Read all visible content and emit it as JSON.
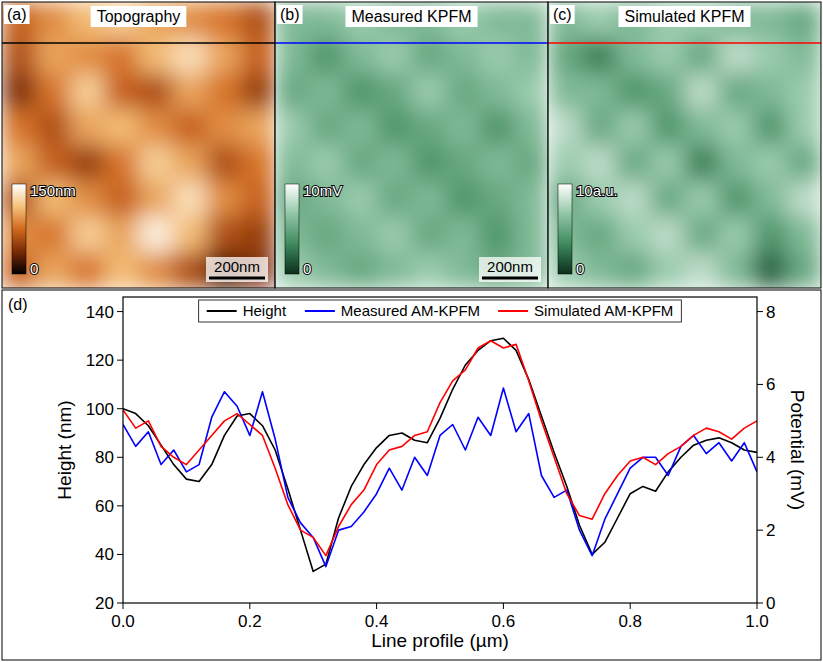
{
  "chart_data": [
    {
      "type": "heatmap",
      "title": "Topography",
      "annotations": [
        "(a)",
        "200nm"
      ],
      "colors": [
        "#000000",
        "#7a2a05",
        "#d2691e",
        "#f5c27a",
        "#ffffff"
      ],
      "color_range": [
        0,
        150
      ],
      "color_ticks": [
        {
          "value": 150,
          "label": "150nm"
        },
        0
      ],
      "cells": [
        [
          70,
          90,
          110,
          120,
          100,
          90,
          80,
          60
        ],
        [
          60,
          100,
          90,
          80,
          110,
          130,
          100,
          70
        ],
        [
          40,
          80,
          120,
          70,
          60,
          100,
          80,
          50
        ],
        [
          80,
          60,
          100,
          110,
          90,
          70,
          90,
          100
        ],
        [
          100,
          70,
          50,
          80,
          120,
          100,
          60,
          80
        ],
        [
          60,
          110,
          90,
          70,
          100,
          130,
          90,
          70
        ],
        [
          90,
          80,
          120,
          100,
          140,
          110,
          60,
          50
        ],
        [
          70,
          100,
          80,
          110,
          90,
          60,
          20,
          40
        ]
      ]
    },
    {
      "type": "heatmap",
      "title": "Measured KPFM",
      "annotations": [
        "(b)",
        "200nm"
      ],
      "colors": [
        "#0b2e1c",
        "#3f8a5e",
        "#8fc5a4",
        "#ffffff"
      ],
      "color_range": [
        0,
        10
      ],
      "color_ticks": [
        {
          "value": 10,
          "label": "10mV"
        },
        0
      ],
      "cells": [
        [
          6,
          6,
          7,
          6,
          6,
          7,
          6,
          6
        ],
        [
          6,
          4,
          6,
          7,
          5,
          6,
          7,
          6
        ],
        [
          5,
          6,
          4,
          5,
          7,
          5,
          6,
          7
        ],
        [
          7,
          5,
          6,
          4,
          5,
          6,
          4,
          6
        ],
        [
          6,
          7,
          5,
          6,
          4,
          5,
          6,
          5
        ],
        [
          5,
          6,
          7,
          5,
          6,
          4,
          5,
          6
        ],
        [
          6,
          5,
          6,
          7,
          5,
          6,
          4,
          6
        ],
        [
          7,
          6,
          5,
          6,
          7,
          6,
          5,
          6
        ]
      ]
    },
    {
      "type": "heatmap",
      "title": "Simulated KPFM",
      "annotations": [
        "(c)"
      ],
      "colors": [
        "#0b2e1c",
        "#3f8a5e",
        "#8fc5a4",
        "#ffffff"
      ],
      "color_range": [
        0,
        10
      ],
      "color_ticks": [
        {
          "value": 10,
          "label": "10a.u."
        },
        0
      ],
      "cells": [
        [
          6,
          7,
          6,
          7,
          7,
          6,
          6,
          5
        ],
        [
          5,
          3,
          6,
          7,
          5,
          8,
          7,
          6
        ],
        [
          6,
          6,
          4,
          5,
          8,
          5,
          6,
          7
        ],
        [
          8,
          5,
          7,
          4,
          6,
          7,
          4,
          7
        ],
        [
          7,
          8,
          5,
          7,
          3,
          6,
          7,
          5
        ],
        [
          5,
          7,
          8,
          5,
          7,
          4,
          6,
          8
        ],
        [
          6,
          5,
          7,
          8,
          5,
          7,
          4,
          6
        ],
        [
          7,
          6,
          5,
          7,
          8,
          6,
          2,
          5
        ]
      ]
    },
    {
      "type": "line",
      "annotations": [
        "(d)"
      ],
      "xlabel": "Line profile (µm)",
      "ylabel": "Height (nm)",
      "y2label": "Potential (mV)",
      "legend": "top",
      "x": [
        0,
        0.02,
        0.04,
        0.06,
        0.08,
        0.1,
        0.12,
        0.14,
        0.16,
        0.18,
        0.2,
        0.22,
        0.24,
        0.26,
        0.28,
        0.3,
        0.32,
        0.34,
        0.36,
        0.38,
        0.4,
        0.42,
        0.44,
        0.46,
        0.48,
        0.5,
        0.52,
        0.54,
        0.56,
        0.58,
        0.6,
        0.62,
        0.64,
        0.66,
        0.68,
        0.7,
        0.72,
        0.74,
        0.76,
        0.78,
        0.8,
        0.82,
        0.84,
        0.86,
        0.88,
        0.9,
        0.92,
        0.94,
        0.96,
        0.98,
        1
      ],
      "xlim": [
        0,
        1
      ],
      "xticks": [
        {
          "value": 0,
          "label": "0.0"
        },
        0.2,
        0.4,
        0.6,
        0.8,
        {
          "value": 1,
          "label": "1.0"
        }
      ],
      "ylim": [
        20,
        146
      ],
      "yticks": [
        20,
        40,
        60,
        80,
        100,
        120,
        140
      ],
      "y2lim": [
        0,
        8.4
      ],
      "y2ticks": [
        0,
        2,
        4,
        6,
        8
      ],
      "series": [
        {
          "name": "Height",
          "color": "#000000",
          "values": [
            100,
            98,
            93,
            85,
            77,
            71,
            70,
            77,
            89,
            97,
            98,
            93,
            83,
            67,
            50,
            33,
            36,
            55,
            68,
            77,
            84,
            89,
            90,
            87,
            86,
            96,
            108,
            118,
            124,
            128,
            129,
            124,
            112,
            97,
            82,
            68,
            52,
            40,
            45,
            55,
            65,
            68,
            66,
            74,
            80,
            85,
            87,
            88,
            86,
            83,
            82
          ]
        },
        {
          "name": "Measured AM-KPFM",
          "color": "#0000ff",
          "axis": "y2",
          "values": [
            4.9,
            4.3,
            4.7,
            3.8,
            4.2,
            3.6,
            3.8,
            5.1,
            5.8,
            5.4,
            4.6,
            5.8,
            4.5,
            2.9,
            2.2,
            1.8,
            1.0,
            2.0,
            2.1,
            2.5,
            3.0,
            3.7,
            3.1,
            4.0,
            3.5,
            4.6,
            4.9,
            4.2,
            5.1,
            4.6,
            5.9,
            4.7,
            5.2,
            3.5,
            2.9,
            3.1,
            2.0,
            1.3,
            2.3,
            3.0,
            3.7,
            4.0,
            4.0,
            3.5,
            4.3,
            4.6,
            4.1,
            4.4,
            3.9,
            4.4,
            3.6
          ]
        },
        {
          "name": "Simulated AM-KPFM",
          "color": "#ff0000",
          "axis": "y2",
          "values": [
            5.3,
            4.8,
            5.0,
            4.3,
            4.0,
            3.8,
            4.2,
            4.6,
            5.0,
            5.2,
            4.9,
            4.6,
            3.7,
            2.7,
            2.0,
            1.8,
            1.3,
            2.1,
            2.7,
            3.1,
            3.8,
            4.2,
            4.3,
            4.6,
            4.7,
            5.5,
            6.1,
            6.4,
            7.0,
            7.2,
            7.0,
            7.1,
            6.1,
            5.0,
            4.0,
            3.0,
            2.4,
            2.3,
            3.0,
            3.5,
            3.9,
            4.0,
            3.8,
            4.1,
            4.3,
            4.6,
            4.8,
            4.7,
            4.5,
            4.8,
            5.0
          ]
        }
      ]
    }
  ]
}
